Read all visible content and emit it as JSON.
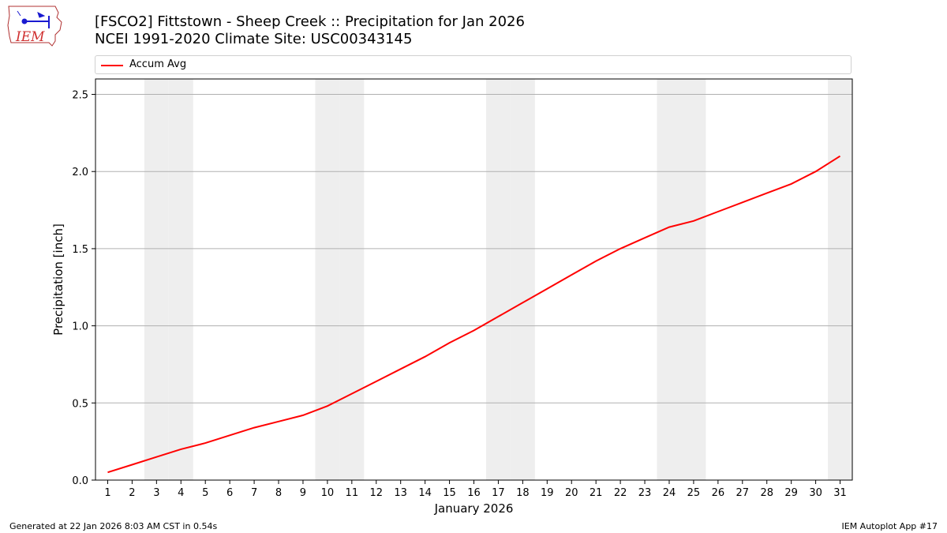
{
  "header": {
    "title_line1": "[FSCO2] Fittstown - Sheep Creek :: Precipitation for Jan 2026",
    "title_line2": "NCEI 1991-2020 Climate Site: USC00343145"
  },
  "logo": {
    "text": "IEM",
    "icon": "iem-iowa-logo"
  },
  "footer": {
    "generated": "Generated at 22 Jan 2026 8:03 AM CST in 0.54s",
    "app": "IEM Autoplot App #17"
  },
  "colors": {
    "line": "#ff0000",
    "weekend_band": "#eeeeee",
    "grid": "#b0b0b0"
  },
  "chart_data": {
    "type": "line",
    "xlabel": "January 2026",
    "ylabel": "Precipitation [inch]",
    "xlim": [
      0.5,
      31.5
    ],
    "ylim": [
      0,
      2.6
    ],
    "yticks": [
      0.0,
      0.5,
      1.0,
      1.5,
      2.0,
      2.5
    ],
    "ytick_labels": [
      "0.0",
      "0.5",
      "1.0",
      "1.5",
      "2.0",
      "2.5"
    ],
    "x": [
      1,
      2,
      3,
      4,
      5,
      6,
      7,
      8,
      9,
      10,
      11,
      12,
      13,
      14,
      15,
      16,
      17,
      18,
      19,
      20,
      21,
      22,
      23,
      24,
      25,
      26,
      27,
      28,
      29,
      30,
      31
    ],
    "xtick_labels": [
      "1",
      "2",
      "3",
      "4",
      "5",
      "6",
      "7",
      "8",
      "9",
      "10",
      "11",
      "12",
      "13",
      "14",
      "15",
      "16",
      "17",
      "18",
      "19",
      "20",
      "21",
      "22",
      "23",
      "24",
      "25",
      "26",
      "27",
      "28",
      "29",
      "30",
      "31"
    ],
    "weekend_days": [
      3,
      4,
      10,
      11,
      17,
      18,
      24,
      25,
      31
    ],
    "grid": "horizontal",
    "legend": "top",
    "series": [
      {
        "name": "Accum Avg",
        "color": "#ff0000",
        "values": [
          0.05,
          0.1,
          0.15,
          0.2,
          0.24,
          0.29,
          0.34,
          0.38,
          0.42,
          0.48,
          0.56,
          0.64,
          0.72,
          0.8,
          0.89,
          0.97,
          1.06,
          1.15,
          1.24,
          1.33,
          1.42,
          1.5,
          1.57,
          1.64,
          1.68,
          1.74,
          1.8,
          1.86,
          1.92,
          2.0,
          2.1
        ]
      }
    ]
  }
}
